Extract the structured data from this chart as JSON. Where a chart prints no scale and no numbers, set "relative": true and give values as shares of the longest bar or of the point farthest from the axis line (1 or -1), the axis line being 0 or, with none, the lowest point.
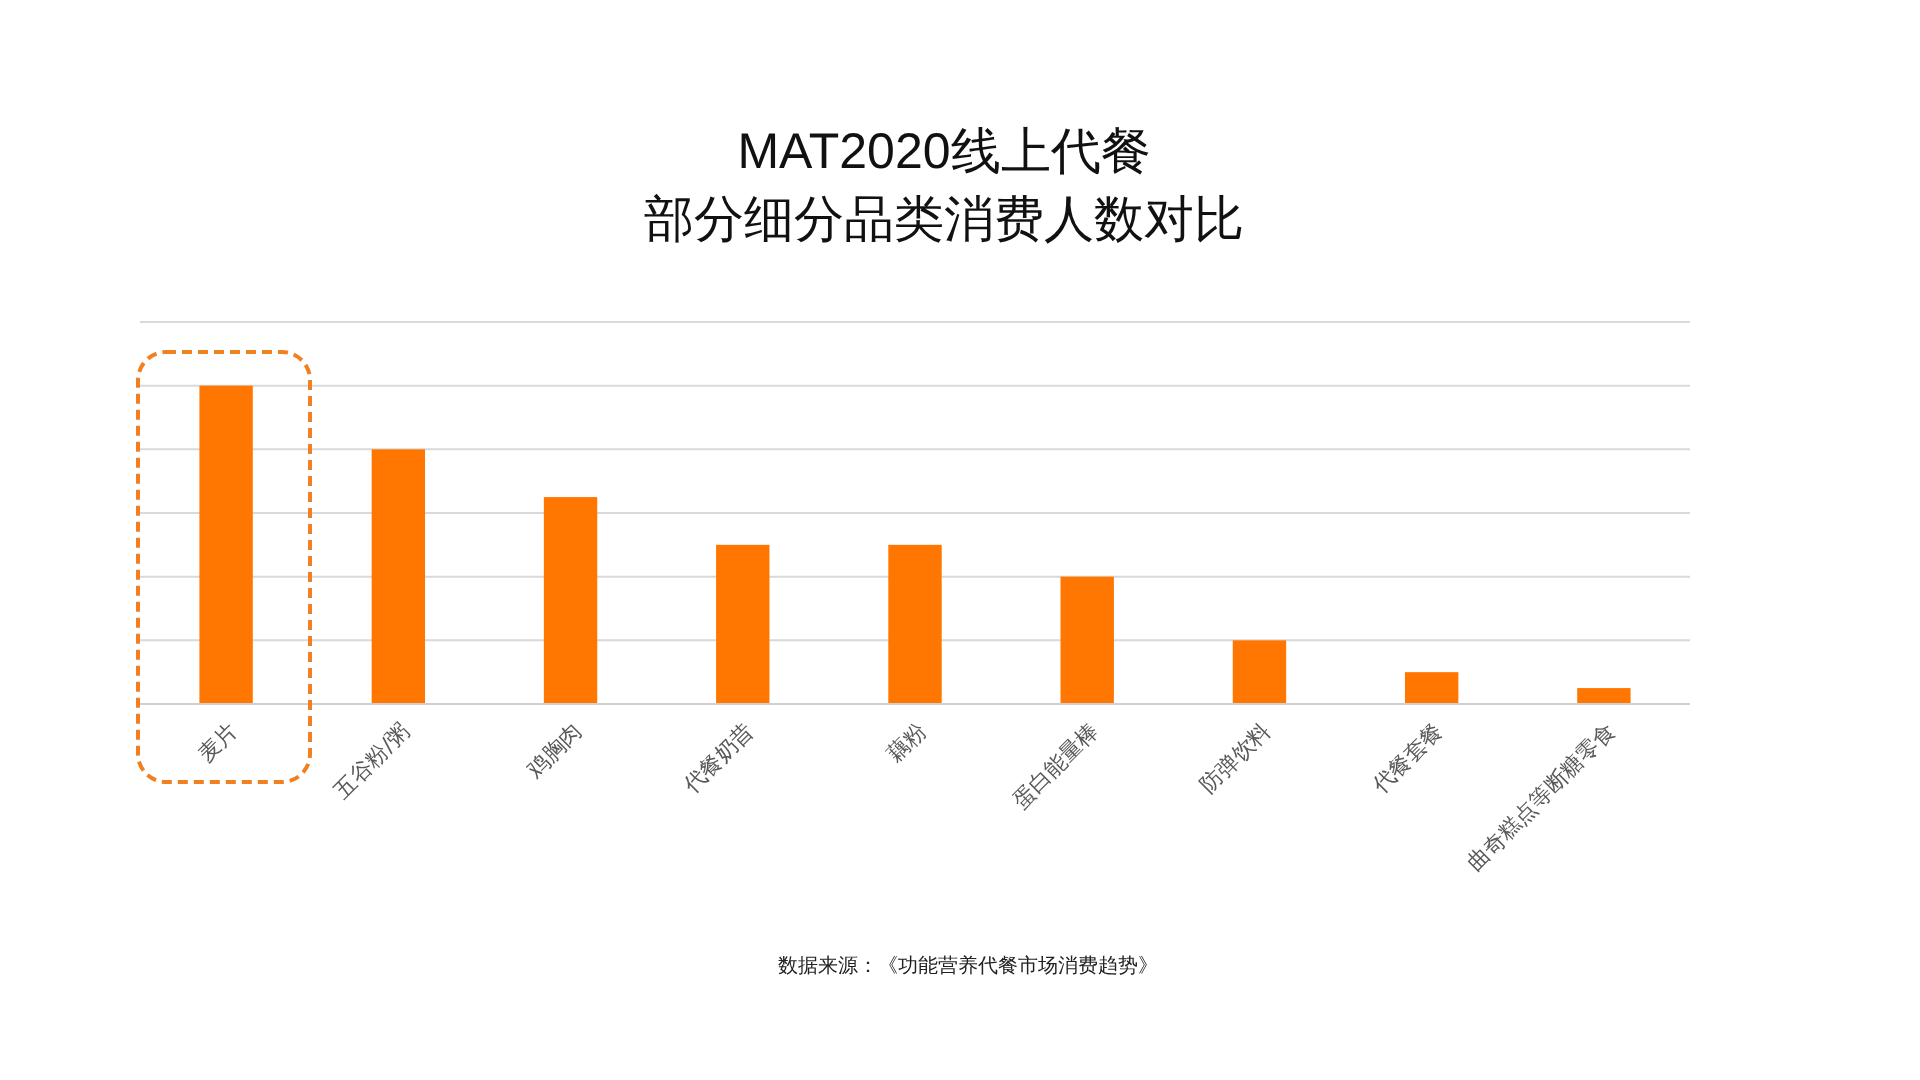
{
  "chart_data": {
    "type": "bar",
    "title": "MAT2020线上代餐",
    "subtitle": "部分细分品类消费人数对比",
    "categories": [
      "麦片",
      "五谷粉/粥",
      "鸡胸肉",
      "代餐奶昔",
      "藕粉",
      "蛋白能量棒",
      "防弹饮料",
      "代餐套餐",
      "曲奇糕点等断糖零食"
    ],
    "values": [
      1,
      0.8,
      0.65,
      0.5,
      0.5,
      0.4,
      0.2,
      0.1,
      0.05
    ],
    "color": "#ff7700",
    "relative": true,
    "grid": "y",
    "annotations": [
      "数据来源：《功能营养代餐市场消费趋势》"
    ]
  }
}
